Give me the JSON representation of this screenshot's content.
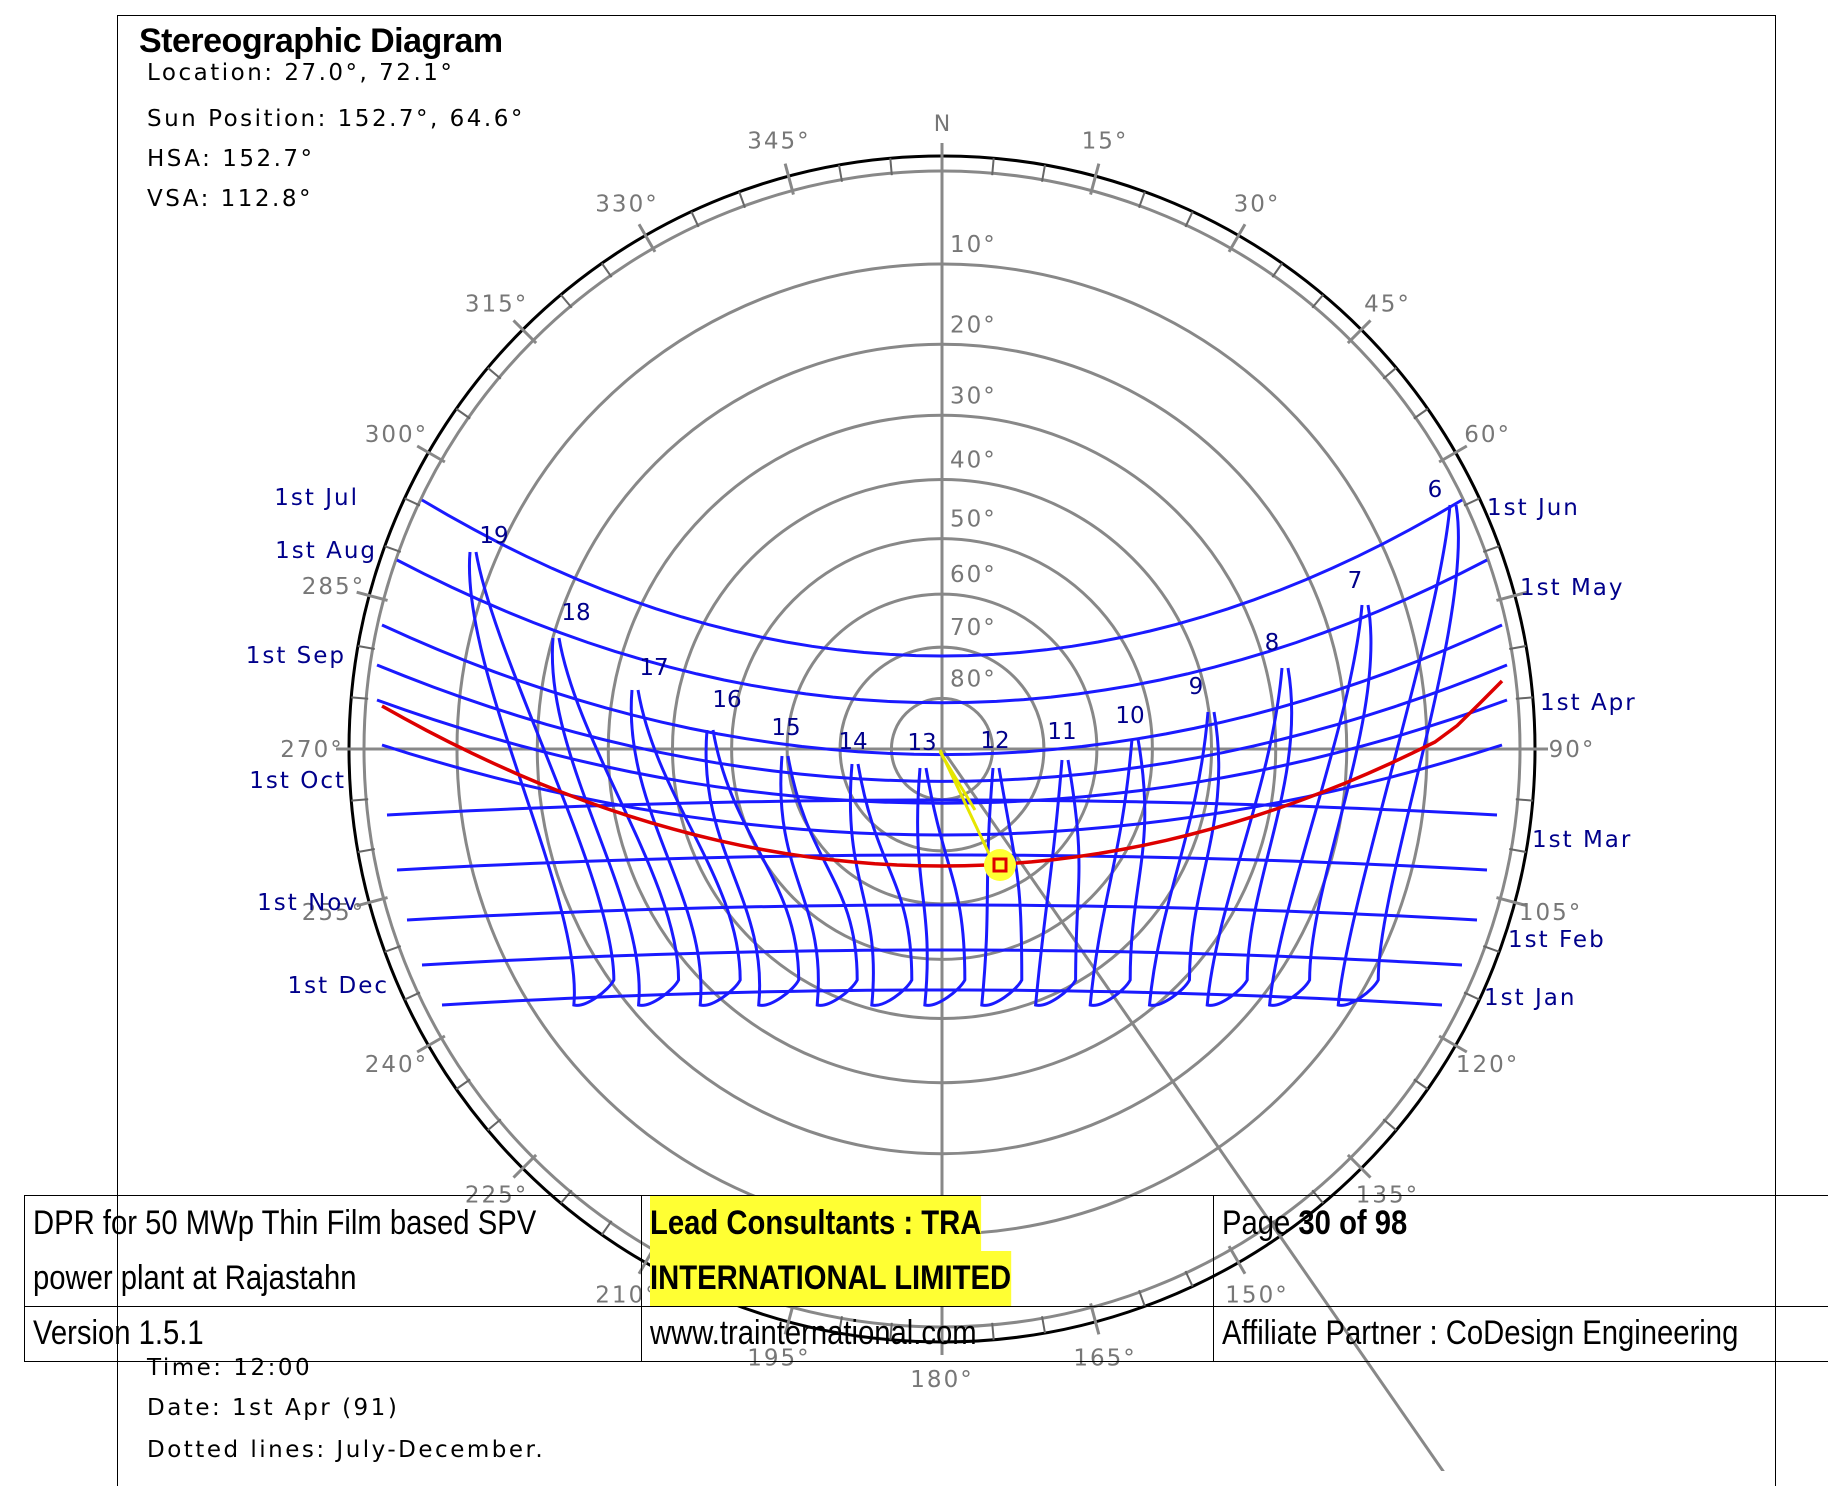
{
  "title": "Stereographic Diagram",
  "info_top": {
    "location": "Location: 27.0°, 72.1°",
    "sun_position": "Sun Position: 152.7°, 64.6°",
    "hsa": "HSA: 152.7°",
    "vsa": "VSA: 112.8°"
  },
  "info_bottom": {
    "time": "Time: 12:00",
    "date": "Date: 1st Apr (91)",
    "dotted": "Dotted lines: July-December."
  },
  "compass": {
    "north_label": "N",
    "azimuth_labels": [
      "15°",
      "30°",
      "45°",
      "60°",
      "90°",
      "105°",
      "120°",
      "135°",
      "150°",
      "165°",
      "180°",
      "195°",
      "210°",
      "225°",
      "240°",
      "255°",
      "270°",
      "285°",
      "300°",
      "315°",
      "330°",
      "345°"
    ],
    "altitude_labels": [
      "10°",
      "20°",
      "30°",
      "40°",
      "50°",
      "60°",
      "70°",
      "80°"
    ]
  },
  "hour_labels": [
    "6",
    "7",
    "8",
    "9",
    "10",
    "11",
    "12",
    "13",
    "14",
    "15",
    "16",
    "17",
    "18",
    "19"
  ],
  "date_labels_left": [
    "1st Jul",
    "1st Aug",
    "1st Sep",
    "1st Oct",
    "1st Nov",
    "1st Dec"
  ],
  "date_labels_right": [
    "1st Jun",
    "1st May",
    "1st Apr",
    "1st Mar",
    "1st Feb",
    "1st Jan"
  ],
  "colors": {
    "sunpath": "#1a1aff",
    "current_day": "#dd0000",
    "grid": "#888888",
    "highlight": "#ffff33",
    "label_blue": "#00008b"
  },
  "footer": {
    "project_line1": "DPR for 50 MWp Thin Film based SPV",
    "project_line2": "power plant at Rajastahn",
    "consultants_line1": "Lead Consultants : TRA",
    "consultants_line2": "INTERNATIONAL LIMITED",
    "page_prefix": "Page ",
    "page_num": "30",
    "page_of": " of 98",
    "version": "Version 1.5.1",
    "website": "www.trainternational.com",
    "affiliate": "Affiliate Partner : CoDesign Engineering"
  }
}
